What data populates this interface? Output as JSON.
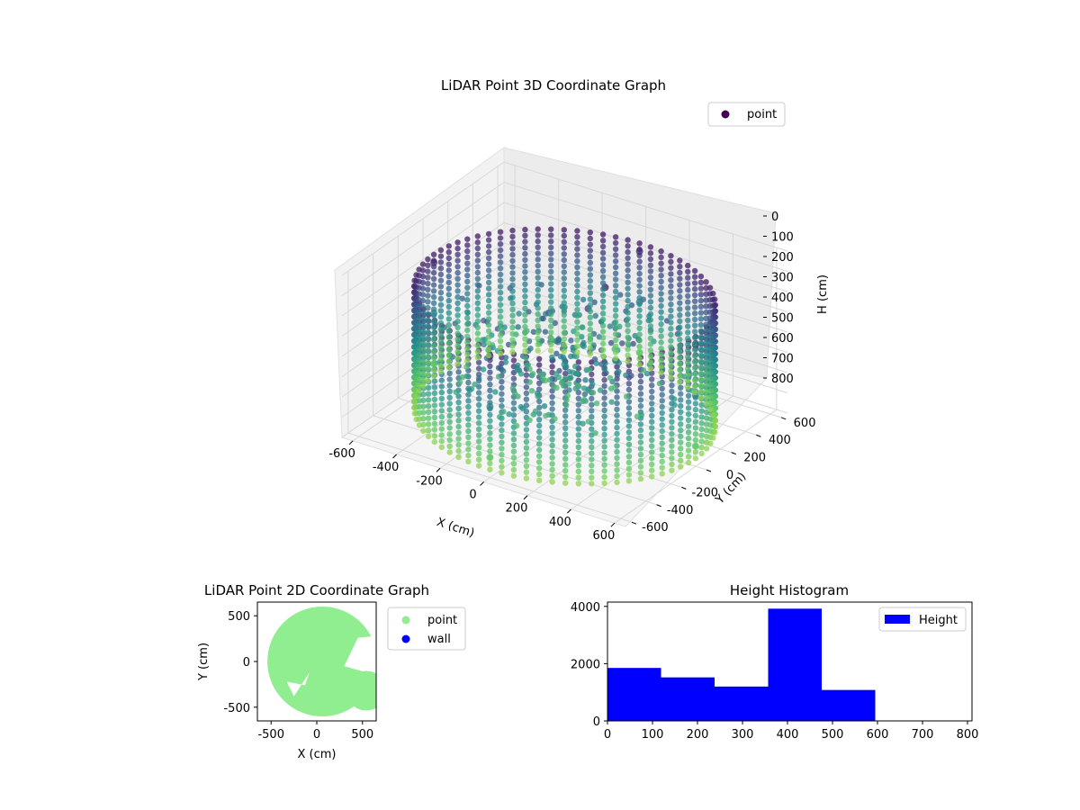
{
  "chart_data": [
    {
      "type": "scatter",
      "projection": "3d",
      "title": "LiDAR Point 3D Coordinate Graph",
      "xlabel": "X (cm)",
      "ylabel": "Y (cm)",
      "zlabel": "H (cm)",
      "xlim": [
        -650,
        650
      ],
      "ylim": [
        -650,
        650
      ],
      "zlim": [
        800,
        0
      ],
      "z_inverted": true,
      "xticks": [
        -600,
        -400,
        -200,
        0,
        200,
        400,
        600
      ],
      "yticks": [
        -600,
        -400,
        -200,
        0,
        200,
        400,
        600
      ],
      "zticks": [
        0,
        100,
        200,
        300,
        400,
        500,
        600,
        700,
        800
      ],
      "colormap": "viridis",
      "grid": true,
      "legend": {
        "position": "top-right",
        "entries": [
          "point"
        ]
      },
      "series": [
        {
          "name": "point",
          "marker": "circle",
          "color": "#440154",
          "description_shape": "cylindrical wall of points, radius about 600 cm, heights roughly 150 to 750 cm, with inner clutter near the center",
          "points_sample": [
            {
              "x": 600,
              "y": 0,
              "h": 200
            },
            {
              "x": 0,
              "y": 600,
              "h": 200
            },
            {
              "x": -600,
              "y": 0,
              "h": 200
            },
            {
              "x": 0,
              "y": -600,
              "h": 200
            },
            {
              "x": 600,
              "y": 0,
              "h": 450
            },
            {
              "x": 0,
              "y": 600,
              "h": 450
            },
            {
              "x": -600,
              "y": 0,
              "h": 450
            },
            {
              "x": 0,
              "y": -600,
              "h": 450
            },
            {
              "x": 600,
              "y": 0,
              "h": 700
            },
            {
              "x": 0,
              "y": 600,
              "h": 700
            },
            {
              "x": -600,
              "y": 0,
              "h": 700
            },
            {
              "x": 0,
              "y": -600,
              "h": 700
            },
            {
              "x": 100,
              "y": 150,
              "h": 150
            },
            {
              "x": 50,
              "y": 100,
              "h": 250
            },
            {
              "x": -100,
              "y": 50,
              "h": 300
            },
            {
              "x": 0,
              "y": 0,
              "h": 500
            }
          ]
        }
      ]
    },
    {
      "type": "scatter",
      "title": "LiDAR Point 2D Coordinate Graph",
      "xlabel": "X (cm)",
      "ylabel": "Y (cm)",
      "xlim": [
        -650,
        650
      ],
      "ylim": [
        -650,
        650
      ],
      "xticks": [
        -500,
        0,
        500
      ],
      "yticks": [
        -500,
        0,
        500
      ],
      "legend": {
        "position": "outside-right",
        "entries": [
          "point",
          "wall"
        ]
      },
      "series": [
        {
          "name": "point",
          "color": "#90ee90",
          "description_shape": "dense filled disk of points roughly radius 600 cm, with notches on the lower-left and right"
        },
        {
          "name": "wall",
          "color": "#0000ff",
          "values": []
        }
      ]
    },
    {
      "type": "bar",
      "subtype": "histogram",
      "title": "Height Histogram",
      "xlabel": "",
      "ylabel": "",
      "xlim": [
        0,
        810
      ],
      "ylim": [
        0,
        4150
      ],
      "xticks": [
        0,
        100,
        200,
        300,
        400,
        500,
        600,
        700,
        800
      ],
      "yticks": [
        0,
        2000,
        4000
      ],
      "legend": {
        "position": "top-right",
        "entries": [
          "Height"
        ]
      },
      "series": [
        {
          "name": "Height",
          "color": "#0000ff",
          "bin_edges": [
            0,
            119,
            238,
            357,
            476,
            595,
            714,
            833
          ],
          "values": [
            1850,
            1520,
            1200,
            3920,
            1080,
            0,
            0
          ]
        }
      ]
    }
  ]
}
